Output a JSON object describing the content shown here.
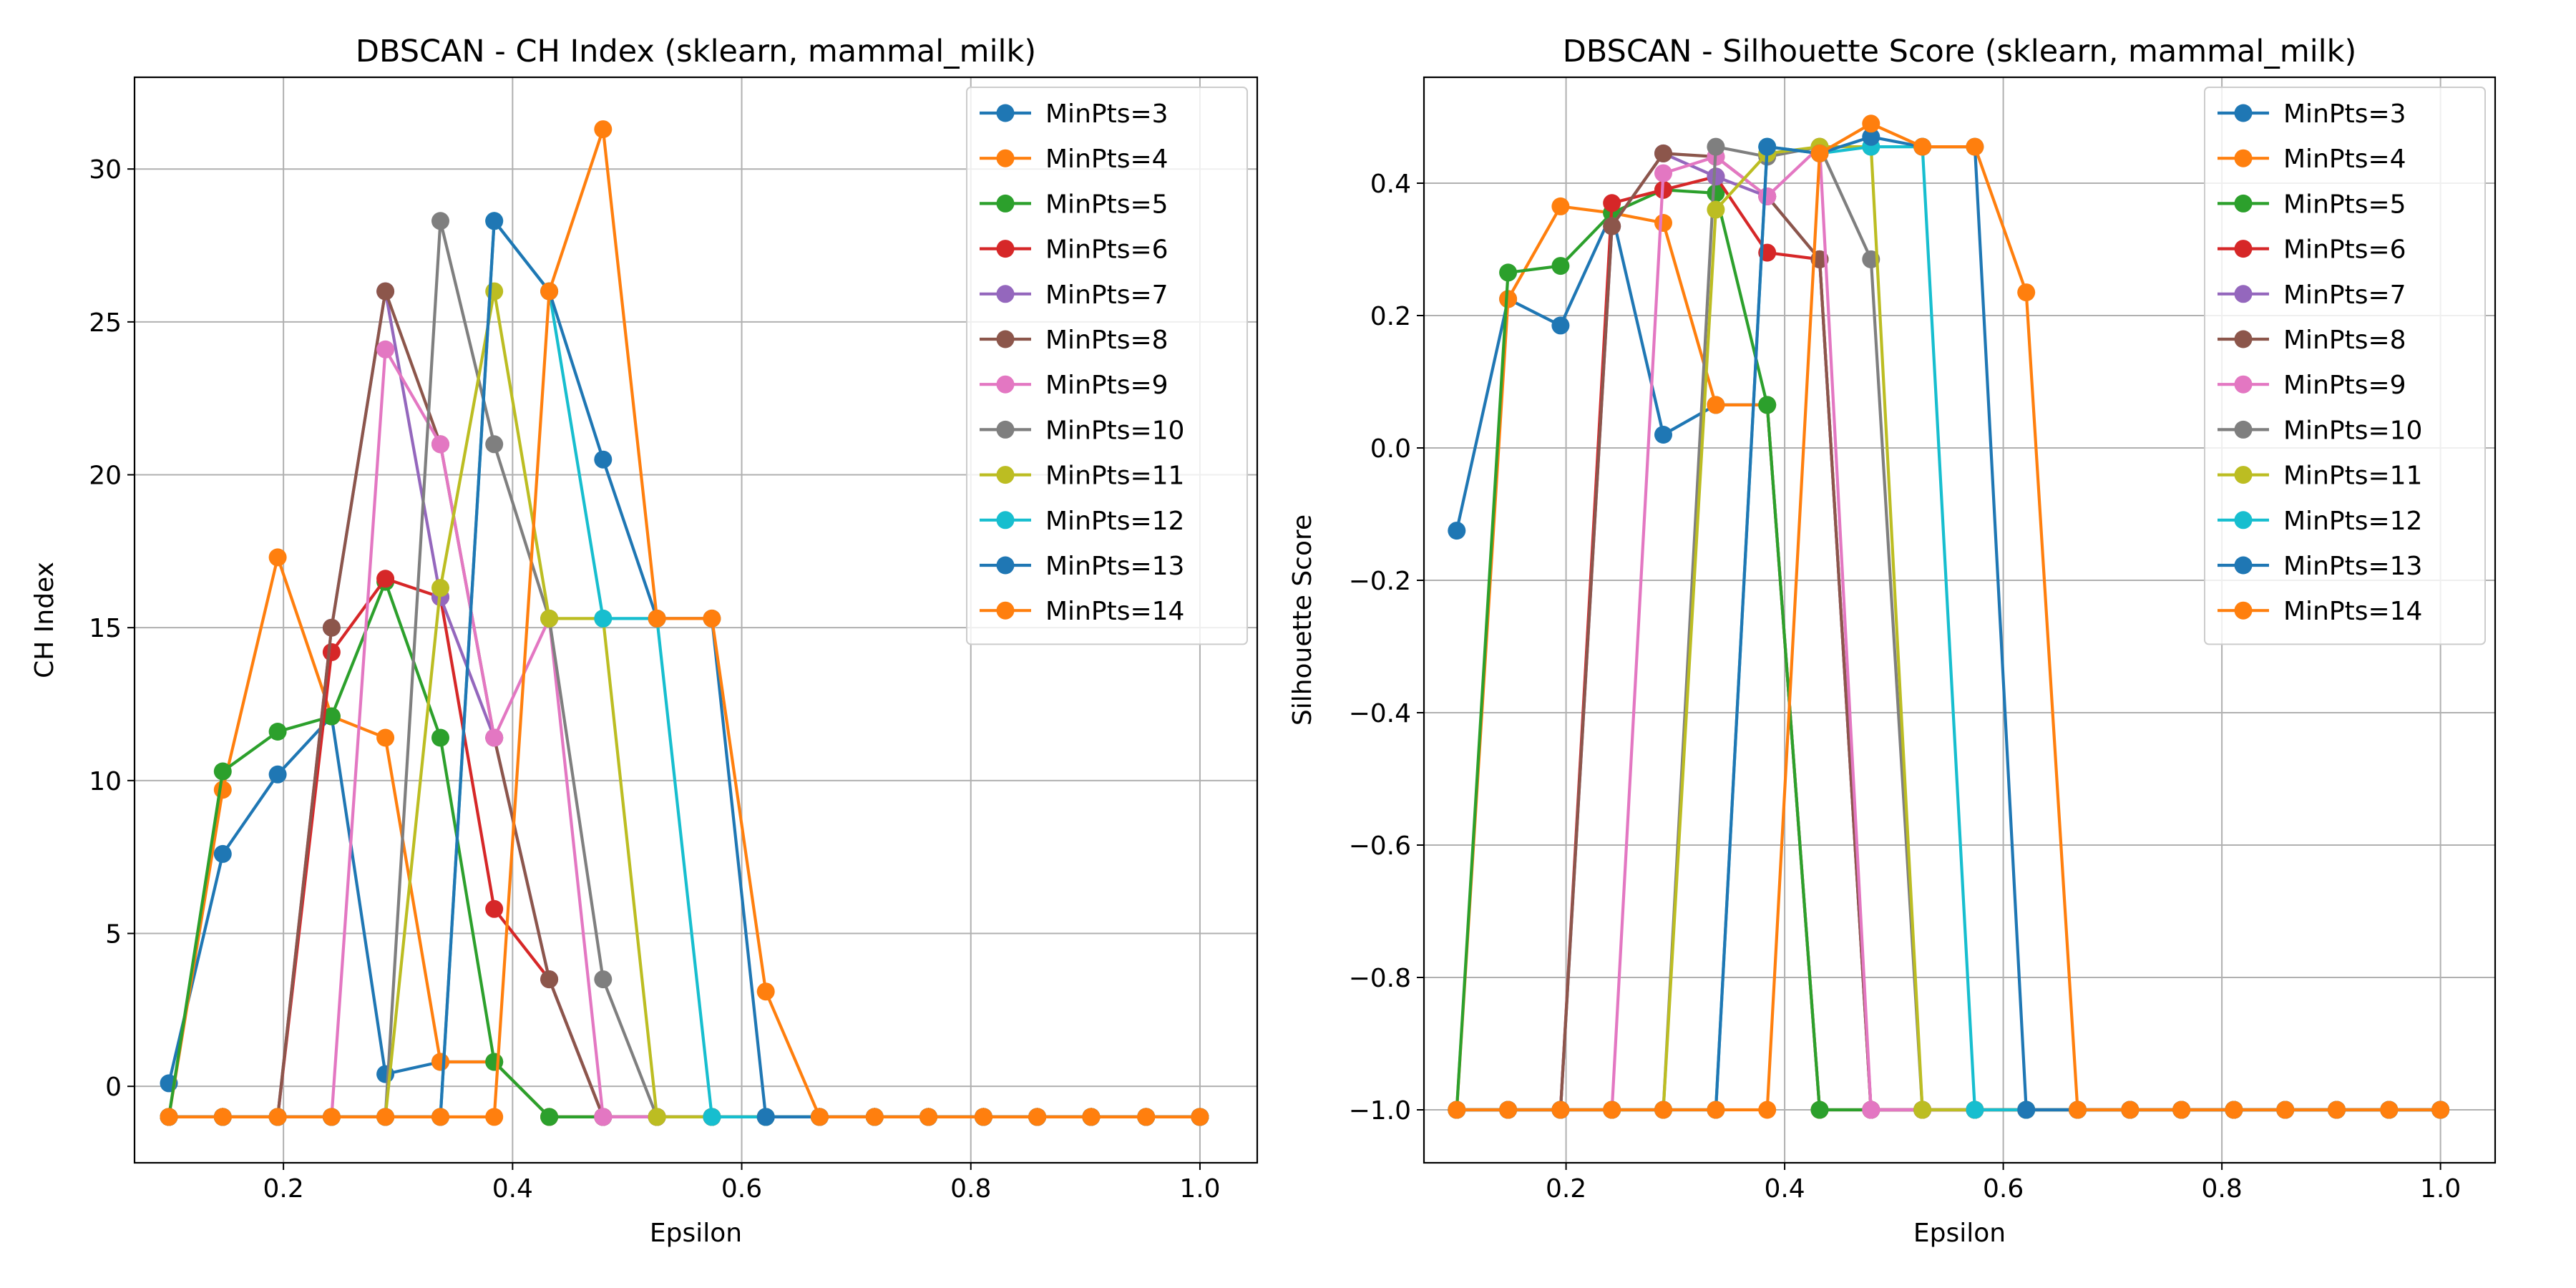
{
  "chart_data": [
    {
      "type": "line",
      "title": "DBSCAN - CH Index (sklearn, mammal_milk)",
      "xlabel": "Epsilon",
      "ylabel": "CH Index",
      "xlim": [
        0.07,
        1.05
      ],
      "ylim": [
        -2.5,
        33
      ],
      "xticks": [
        0.2,
        0.4,
        0.6,
        0.8,
        1.0
      ],
      "xtick_labels": [
        "0.2",
        "0.4",
        "0.6",
        "0.8",
        "1.0"
      ],
      "yticks": [
        0,
        5,
        10,
        15,
        20,
        25,
        30
      ],
      "ytick_labels": [
        "0",
        "5",
        "10",
        "15",
        "20",
        "25",
        "30"
      ],
      "grid": true,
      "legend": "top-right",
      "x": [
        0.1,
        0.147,
        0.195,
        0.242,
        0.289,
        0.337,
        0.384,
        0.432,
        0.479,
        0.526,
        0.574,
        0.621,
        0.668,
        0.716,
        0.763,
        0.811,
        0.858,
        0.905,
        0.953,
        1.0
      ],
      "series": [
        {
          "name": "MinPts=3",
          "color": "#1f77b4",
          "values": [
            0.1,
            7.6,
            10.2,
            12.1,
            0.4,
            0.8,
            0.8,
            -1,
            -1,
            -1,
            -1,
            -1,
            -1,
            -1,
            -1,
            -1,
            -1,
            -1,
            -1,
            -1
          ]
        },
        {
          "name": "MinPts=4",
          "color": "#ff7f0e",
          "values": [
            -1,
            9.7,
            17.3,
            12.1,
            11.4,
            0.8,
            0.8,
            -1,
            -1,
            -1,
            -1,
            -1,
            -1,
            -1,
            -1,
            -1,
            -1,
            -1,
            -1,
            -1
          ]
        },
        {
          "name": "MinPts=5",
          "color": "#2ca02c",
          "values": [
            -1,
            10.3,
            11.6,
            12.1,
            16.5,
            11.4,
            0.8,
            -1,
            -1,
            -1,
            -1,
            -1,
            -1,
            -1,
            -1,
            -1,
            -1,
            -1,
            -1,
            -1
          ]
        },
        {
          "name": "MinPts=6",
          "color": "#d62728",
          "values": [
            -1,
            -1,
            -1,
            14.2,
            16.6,
            16.0,
            5.8,
            3.5,
            -1,
            -1,
            -1,
            -1,
            -1,
            -1,
            -1,
            -1,
            -1,
            -1,
            -1,
            -1
          ]
        },
        {
          "name": "MinPts=7",
          "color": "#9467bd",
          "values": [
            -1,
            -1,
            -1,
            15.0,
            26.0,
            16.0,
            11.4,
            3.5,
            -1,
            -1,
            -1,
            -1,
            -1,
            -1,
            -1,
            -1,
            -1,
            -1,
            -1,
            -1
          ]
        },
        {
          "name": "MinPts=8",
          "color": "#8c564b",
          "values": [
            -1,
            -1,
            -1,
            15.0,
            26.0,
            21.0,
            11.4,
            3.5,
            -1,
            -1,
            -1,
            -1,
            -1,
            -1,
            -1,
            -1,
            -1,
            -1,
            -1,
            -1
          ]
        },
        {
          "name": "MinPts=9",
          "color": "#e377c2",
          "values": [
            -1,
            -1,
            -1,
            -1,
            24.1,
            21.0,
            11.4,
            15.3,
            -1,
            -1,
            -1,
            -1,
            -1,
            -1,
            -1,
            -1,
            -1,
            -1,
            -1,
            -1
          ]
        },
        {
          "name": "MinPts=10",
          "color": "#7f7f7f",
          "values": [
            -1,
            -1,
            -1,
            -1,
            -1,
            28.3,
            21.0,
            15.3,
            3.5,
            -1,
            -1,
            -1,
            -1,
            -1,
            -1,
            -1,
            -1,
            -1,
            -1,
            -1
          ]
        },
        {
          "name": "MinPts=11",
          "color": "#bcbd22",
          "values": [
            -1,
            -1,
            -1,
            -1,
            -1,
            16.3,
            26.0,
            15.3,
            15.3,
            -1,
            -1,
            -1,
            -1,
            -1,
            -1,
            -1,
            -1,
            -1,
            -1,
            -1
          ]
        },
        {
          "name": "MinPts=12",
          "color": "#17becf",
          "values": [
            -1,
            -1,
            -1,
            -1,
            -1,
            -1,
            28.3,
            26.0,
            15.3,
            15.3,
            -1,
            -1,
            -1,
            -1,
            -1,
            -1,
            -1,
            -1,
            -1,
            -1
          ]
        },
        {
          "name": "MinPts=13",
          "color": "#1f77b4",
          "values": [
            -1,
            -1,
            -1,
            -1,
            -1,
            -1,
            28.3,
            26.0,
            20.5,
            15.3,
            15.3,
            -1,
            -1,
            -1,
            -1,
            -1,
            -1,
            -1,
            -1,
            -1
          ]
        },
        {
          "name": "MinPts=14",
          "color": "#ff7f0e",
          "values": [
            -1,
            -1,
            -1,
            -1,
            -1,
            -1,
            -1,
            26.0,
            31.3,
            15.3,
            15.3,
            3.1,
            -1,
            -1,
            -1,
            -1,
            -1,
            -1,
            -1,
            -1
          ]
        }
      ]
    },
    {
      "type": "line",
      "title": "DBSCAN - Silhouette Score (sklearn, mammal_milk)",
      "xlabel": "Epsilon",
      "ylabel": "Silhouette Score",
      "xlim": [
        0.07,
        1.05
      ],
      "ylim": [
        -1.08,
        0.56
      ],
      "xticks": [
        0.2,
        0.4,
        0.6,
        0.8,
        1.0
      ],
      "xtick_labels": [
        "0.2",
        "0.4",
        "0.6",
        "0.8",
        "1.0"
      ],
      "yticks": [
        -1.0,
        -0.8,
        -0.6,
        -0.4,
        -0.2,
        0.0,
        0.2,
        0.4
      ],
      "ytick_labels": [
        "−1.0",
        "−0.8",
        "−0.6",
        "−0.4",
        "−0.2",
        "0.0",
        "0.2",
        "0.4"
      ],
      "grid": true,
      "legend": "top-right",
      "x": [
        0.1,
        0.147,
        0.195,
        0.242,
        0.289,
        0.337,
        0.384,
        0.432,
        0.479,
        0.526,
        0.574,
        0.621,
        0.668,
        0.716,
        0.763,
        0.811,
        0.858,
        0.905,
        0.953,
        1.0
      ],
      "series": [
        {
          "name": "MinPts=3",
          "color": "#1f77b4",
          "values": [
            -0.125,
            0.225,
            0.185,
            0.355,
            0.02,
            0.065,
            0.065,
            -1,
            -1,
            -1,
            -1,
            -1,
            -1,
            -1,
            -1,
            -1,
            -1,
            -1,
            -1,
            -1
          ]
        },
        {
          "name": "MinPts=4",
          "color": "#ff7f0e",
          "values": [
            -1,
            0.225,
            0.365,
            0.355,
            0.34,
            0.065,
            0.065,
            -1,
            -1,
            -1,
            -1,
            -1,
            -1,
            -1,
            -1,
            -1,
            -1,
            -1,
            -1,
            -1
          ]
        },
        {
          "name": "MinPts=5",
          "color": "#2ca02c",
          "values": [
            -1,
            0.265,
            0.275,
            0.355,
            0.39,
            0.385,
            0.065,
            -1,
            -1,
            -1,
            -1,
            -1,
            -1,
            -1,
            -1,
            -1,
            -1,
            -1,
            -1,
            -1
          ]
        },
        {
          "name": "MinPts=6",
          "color": "#d62728",
          "values": [
            -1,
            -1,
            -1,
            0.37,
            0.39,
            0.41,
            0.295,
            0.285,
            -1,
            -1,
            -1,
            -1,
            -1,
            -1,
            -1,
            -1,
            -1,
            -1,
            -1,
            -1
          ]
        },
        {
          "name": "MinPts=7",
          "color": "#9467bd",
          "values": [
            -1,
            -1,
            -1,
            0.335,
            0.445,
            0.41,
            0.38,
            0.285,
            -1,
            -1,
            -1,
            -1,
            -1,
            -1,
            -1,
            -1,
            -1,
            -1,
            -1,
            -1
          ]
        },
        {
          "name": "MinPts=8",
          "color": "#8c564b",
          "values": [
            -1,
            -1,
            -1,
            0.335,
            0.445,
            0.44,
            0.38,
            0.285,
            -1,
            -1,
            -1,
            -1,
            -1,
            -1,
            -1,
            -1,
            -1,
            -1,
            -1,
            -1
          ]
        },
        {
          "name": "MinPts=9",
          "color": "#e377c2",
          "values": [
            -1,
            -1,
            -1,
            -1,
            0.415,
            0.44,
            0.38,
            0.455,
            -1,
            -1,
            -1,
            -1,
            -1,
            -1,
            -1,
            -1,
            -1,
            -1,
            -1,
            -1
          ]
        },
        {
          "name": "MinPts=10",
          "color": "#7f7f7f",
          "values": [
            -1,
            -1,
            -1,
            -1,
            -1,
            0.455,
            0.44,
            0.455,
            0.285,
            -1,
            -1,
            -1,
            -1,
            -1,
            -1,
            -1,
            -1,
            -1,
            -1,
            -1
          ]
        },
        {
          "name": "MinPts=11",
          "color": "#bcbd22",
          "values": [
            -1,
            -1,
            -1,
            -1,
            -1,
            0.36,
            0.445,
            0.455,
            0.455,
            -1,
            -1,
            -1,
            -1,
            -1,
            -1,
            -1,
            -1,
            -1,
            -1,
            -1
          ]
        },
        {
          "name": "MinPts=12",
          "color": "#17becf",
          "values": [
            -1,
            -1,
            -1,
            -1,
            -1,
            -1,
            0.455,
            0.445,
            0.455,
            0.455,
            -1,
            -1,
            -1,
            -1,
            -1,
            -1,
            -1,
            -1,
            -1,
            -1
          ]
        },
        {
          "name": "MinPts=13",
          "color": "#1f77b4",
          "values": [
            -1,
            -1,
            -1,
            -1,
            -1,
            -1,
            0.455,
            0.445,
            0.47,
            0.455,
            0.455,
            -1,
            -1,
            -1,
            -1,
            -1,
            -1,
            -1,
            -1,
            -1
          ]
        },
        {
          "name": "MinPts=14",
          "color": "#ff7f0e",
          "values": [
            -1,
            -1,
            -1,
            -1,
            -1,
            -1,
            -1,
            0.445,
            0.49,
            0.455,
            0.455,
            0.235,
            -1,
            -1,
            -1,
            -1,
            -1,
            -1,
            -1,
            -1
          ]
        }
      ]
    }
  ]
}
